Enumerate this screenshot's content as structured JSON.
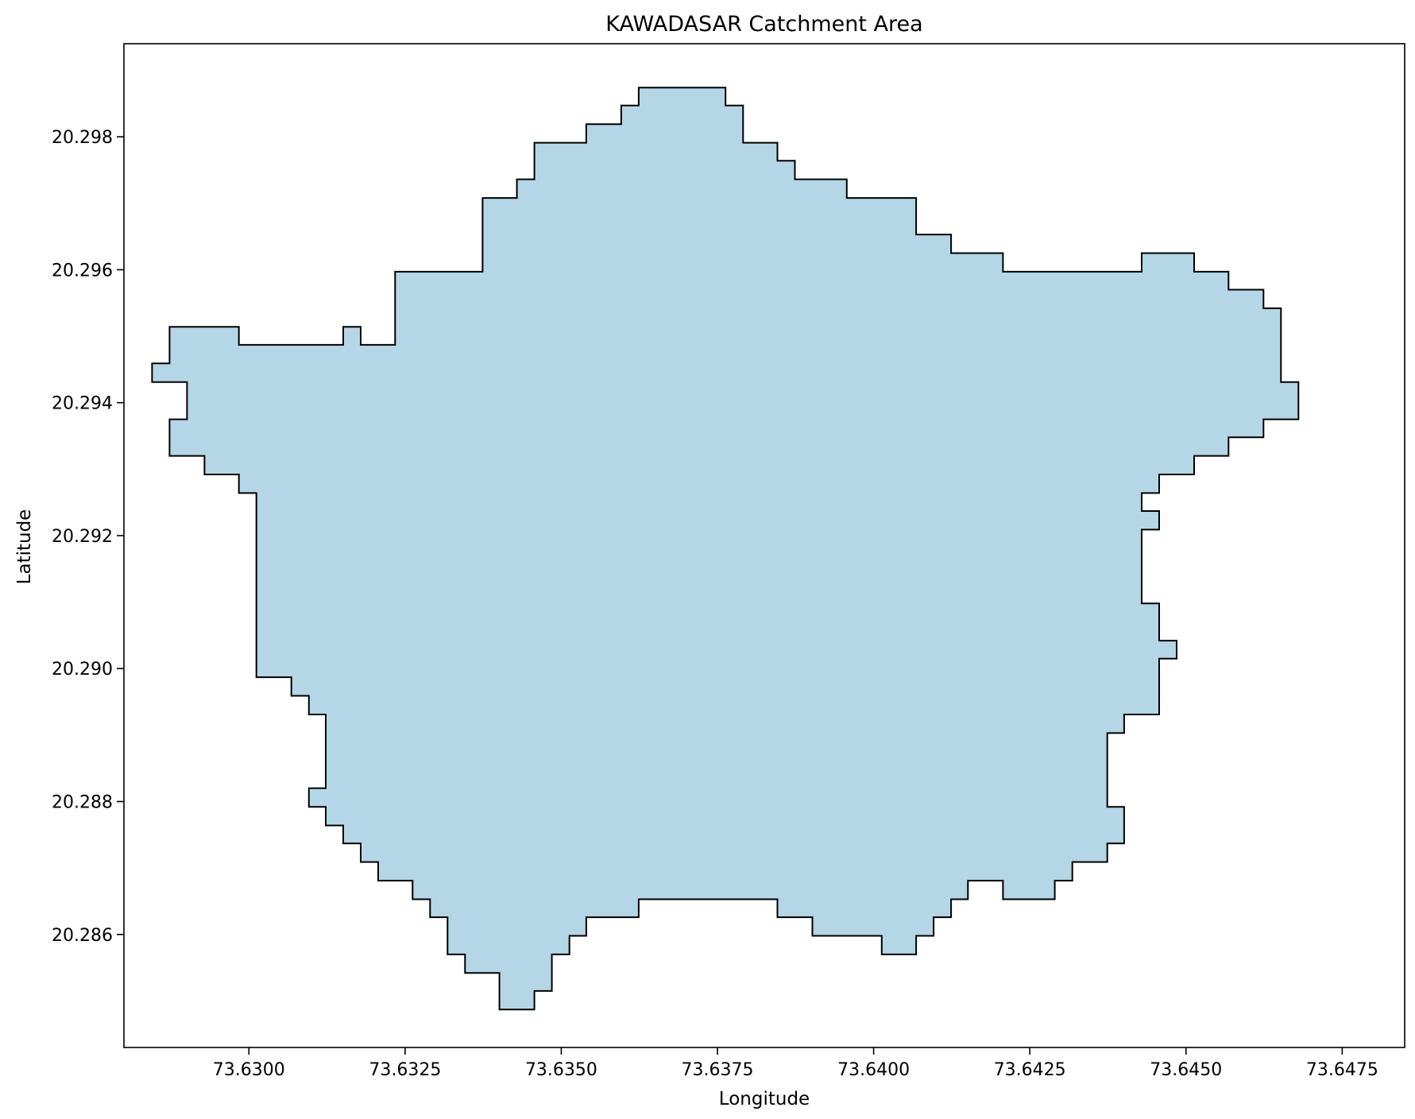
{
  "chart_data": {
    "type": "map",
    "title": "KAWADASAR Catchment Area",
    "xlabel": "Longitude",
    "ylabel": "Latitude",
    "xlim": [
      73.628,
      73.6485
    ],
    "ylim": [
      20.2843,
      20.2994
    ],
    "grid": false,
    "legend": "none",
    "xticks": [
      73.63,
      73.6325,
      73.635,
      73.6375,
      73.64,
      73.6425,
      73.645,
      73.6475
    ],
    "xtick_labels": [
      "73.6300",
      "73.6325",
      "73.6350",
      "73.6375",
      "73.6400",
      "73.6425",
      "73.6450",
      "73.6475"
    ],
    "yticks": [
      20.286,
      20.288,
      20.29,
      20.292,
      20.294,
      20.296,
      20.298
    ],
    "ytick_labels": [
      "20.286",
      "20.288",
      "20.290",
      "20.292",
      "20.294",
      "20.296",
      "20.298"
    ],
    "fill_color": "#b4d6e6",
    "edge_color": "#000000",
    "boundary": [
      [
        73.62845,
        20.29431
      ],
      [
        73.62845,
        20.29459
      ],
      [
        73.62873,
        20.29459
      ],
      [
        73.62873,
        20.29514
      ],
      [
        73.62984,
        20.29514
      ],
      [
        73.62984,
        20.29487
      ],
      [
        73.63151,
        20.29487
      ],
      [
        73.63151,
        20.29514
      ],
      [
        73.63179,
        20.29514
      ],
      [
        73.63179,
        20.29487
      ],
      [
        73.63234,
        20.29487
      ],
      [
        73.63234,
        20.29597
      ],
      [
        73.63374,
        20.29597
      ],
      [
        73.63374,
        20.29708
      ],
      [
        73.63429,
        20.29708
      ],
      [
        73.63429,
        20.29736
      ],
      [
        73.63457,
        20.29736
      ],
      [
        73.63457,
        20.29791
      ],
      [
        73.6354,
        20.29791
      ],
      [
        73.6354,
        20.29819
      ],
      [
        73.63596,
        20.29819
      ],
      [
        73.63596,
        20.29847
      ],
      [
        73.63624,
        20.29847
      ],
      [
        73.63624,
        20.29874
      ],
      [
        73.63763,
        20.29874
      ],
      [
        73.63763,
        20.29847
      ],
      [
        73.63791,
        20.29847
      ],
      [
        73.63791,
        20.29791
      ],
      [
        73.63846,
        20.29791
      ],
      [
        73.63846,
        20.29764
      ],
      [
        73.63874,
        20.29764
      ],
      [
        73.63874,
        20.29736
      ],
      [
        73.63957,
        20.29736
      ],
      [
        73.63957,
        20.29708
      ],
      [
        73.64068,
        20.29708
      ],
      [
        73.64068,
        20.29653
      ],
      [
        73.64124,
        20.29653
      ],
      [
        73.64124,
        20.29625
      ],
      [
        73.64207,
        20.29625
      ],
      [
        73.64207,
        20.29597
      ],
      [
        73.64429,
        20.29597
      ],
      [
        73.64429,
        20.29625
      ],
      [
        73.64513,
        20.29625
      ],
      [
        73.64513,
        20.29597
      ],
      [
        73.64568,
        20.29597
      ],
      [
        73.64568,
        20.2957
      ],
      [
        73.64624,
        20.2957
      ],
      [
        73.64624,
        20.29542
      ],
      [
        73.64652,
        20.29542
      ],
      [
        73.64652,
        20.29431
      ],
      [
        73.6468,
        20.29431
      ],
      [
        73.6468,
        20.29375
      ],
      [
        73.64624,
        20.29375
      ],
      [
        73.64624,
        20.29348
      ],
      [
        73.64568,
        20.29348
      ],
      [
        73.64568,
        20.2932
      ],
      [
        73.64513,
        20.2932
      ],
      [
        73.64513,
        20.29292
      ],
      [
        73.64457,
        20.29292
      ],
      [
        73.64457,
        20.29264
      ],
      [
        73.64429,
        20.29264
      ],
      [
        73.64429,
        20.29237
      ],
      [
        73.64457,
        20.29237
      ],
      [
        73.64457,
        20.29209
      ],
      [
        73.64429,
        20.29209
      ],
      [
        73.64429,
        20.29098
      ],
      [
        73.64457,
        20.29098
      ],
      [
        73.64457,
        20.29042
      ],
      [
        73.64485,
        20.29042
      ],
      [
        73.64485,
        20.29015
      ],
      [
        73.64457,
        20.29015
      ],
      [
        73.64457,
        20.28931
      ],
      [
        73.64401,
        20.28931
      ],
      [
        73.64401,
        20.28903
      ],
      [
        73.64374,
        20.28903
      ],
      [
        73.64374,
        20.28792
      ],
      [
        73.64401,
        20.28792
      ],
      [
        73.64401,
        20.28737
      ],
      [
        73.64374,
        20.28737
      ],
      [
        73.64374,
        20.28709
      ],
      [
        73.64318,
        20.28709
      ],
      [
        73.64318,
        20.28681
      ],
      [
        73.6429,
        20.28681
      ],
      [
        73.6429,
        20.28653
      ],
      [
        73.64207,
        20.28653
      ],
      [
        73.64207,
        20.28681
      ],
      [
        73.64151,
        20.28681
      ],
      [
        73.64151,
        20.28653
      ],
      [
        73.64124,
        20.28653
      ],
      [
        73.64124,
        20.28626
      ],
      [
        73.64096,
        20.28626
      ],
      [
        73.64096,
        20.28598
      ],
      [
        73.64068,
        20.28598
      ],
      [
        73.64068,
        20.2857
      ],
      [
        73.64013,
        20.2857
      ],
      [
        73.64013,
        20.28598
      ],
      [
        73.63902,
        20.28598
      ],
      [
        73.63902,
        20.28626
      ],
      [
        73.63846,
        20.28626
      ],
      [
        73.63846,
        20.28653
      ],
      [
        73.63624,
        20.28653
      ],
      [
        73.63624,
        20.28626
      ],
      [
        73.6354,
        20.28626
      ],
      [
        73.6354,
        20.28598
      ],
      [
        73.63513,
        20.28598
      ],
      [
        73.63513,
        20.2857
      ],
      [
        73.63485,
        20.2857
      ],
      [
        73.63485,
        20.28515
      ],
      [
        73.63457,
        20.28515
      ],
      [
        73.63457,
        20.28487
      ],
      [
        73.63401,
        20.28487
      ],
      [
        73.63401,
        20.28542
      ],
      [
        73.63346,
        20.28542
      ],
      [
        73.63346,
        20.2857
      ],
      [
        73.63318,
        20.2857
      ],
      [
        73.63318,
        20.28626
      ],
      [
        73.6329,
        20.28626
      ],
      [
        73.6329,
        20.28653
      ],
      [
        73.63262,
        20.28653
      ],
      [
        73.63262,
        20.28681
      ],
      [
        73.63207,
        20.28681
      ],
      [
        73.63207,
        20.28709
      ],
      [
        73.63179,
        20.28709
      ],
      [
        73.63179,
        20.28737
      ],
      [
        73.63151,
        20.28737
      ],
      [
        73.63151,
        20.28764
      ],
      [
        73.63123,
        20.28764
      ],
      [
        73.63123,
        20.28792
      ],
      [
        73.63096,
        20.28792
      ],
      [
        73.63096,
        20.2882
      ],
      [
        73.63123,
        20.2882
      ],
      [
        73.63123,
        20.28931
      ],
      [
        73.63096,
        20.28931
      ],
      [
        73.63096,
        20.28959
      ],
      [
        73.63068,
        20.28959
      ],
      [
        73.63068,
        20.28987
      ],
      [
        73.63012,
        20.28987
      ],
      [
        73.63012,
        20.29264
      ],
      [
        73.62984,
        20.29264
      ],
      [
        73.62984,
        20.29292
      ],
      [
        73.62929,
        20.29292
      ],
      [
        73.62929,
        20.2932
      ],
      [
        73.62873,
        20.2932
      ],
      [
        73.62873,
        20.29375
      ],
      [
        73.62901,
        20.29375
      ],
      [
        73.62901,
        20.29431
      ]
    ]
  }
}
